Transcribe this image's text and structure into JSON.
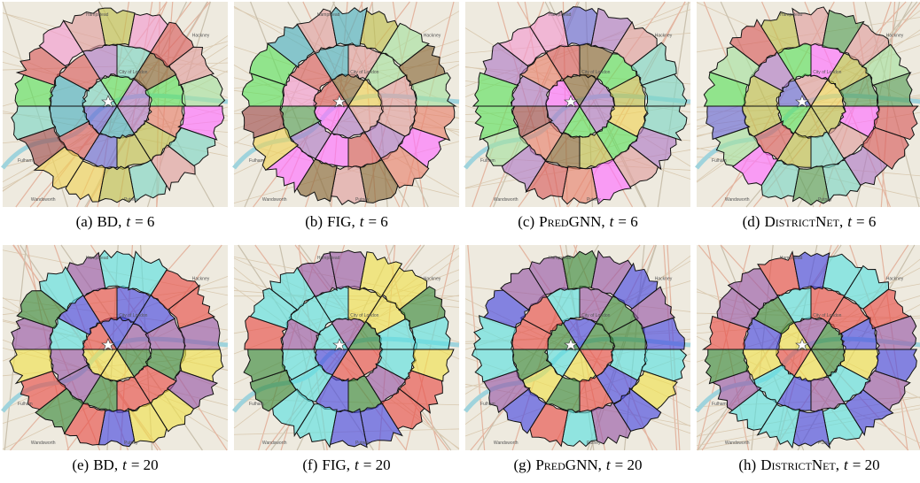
{
  "figure": {
    "map_labels": [
      "Hampstead",
      "Hackney",
      "City of London",
      "Fulham",
      "Wandsworth",
      "Putney"
    ],
    "panels": [
      {
        "tag": "(a)",
        "method": "BD,",
        "variable": "t",
        "value": "= 6"
      },
      {
        "tag": "(b)",
        "method": "FIG,",
        "variable": "t",
        "value": "= 6"
      },
      {
        "tag": "(c)",
        "method": "PredGNN,",
        "variable": "t",
        "value": "= 6"
      },
      {
        "tag": "(d)",
        "method": "DistrictNet,",
        "variable": "t",
        "value": "= 6"
      },
      {
        "tag": "(e)",
        "method": "BD,",
        "variable": "t",
        "value": "= 20"
      },
      {
        "tag": "(f)",
        "method": "FIG,",
        "variable": "t",
        "value": "= 20"
      },
      {
        "tag": "(g)",
        "method": "PredGNN,",
        "variable": "t",
        "value": "= 20"
      },
      {
        "tag": "(h)",
        "method": "DistrictNet,",
        "variable": "t",
        "value": "= 20"
      }
    ]
  }
}
